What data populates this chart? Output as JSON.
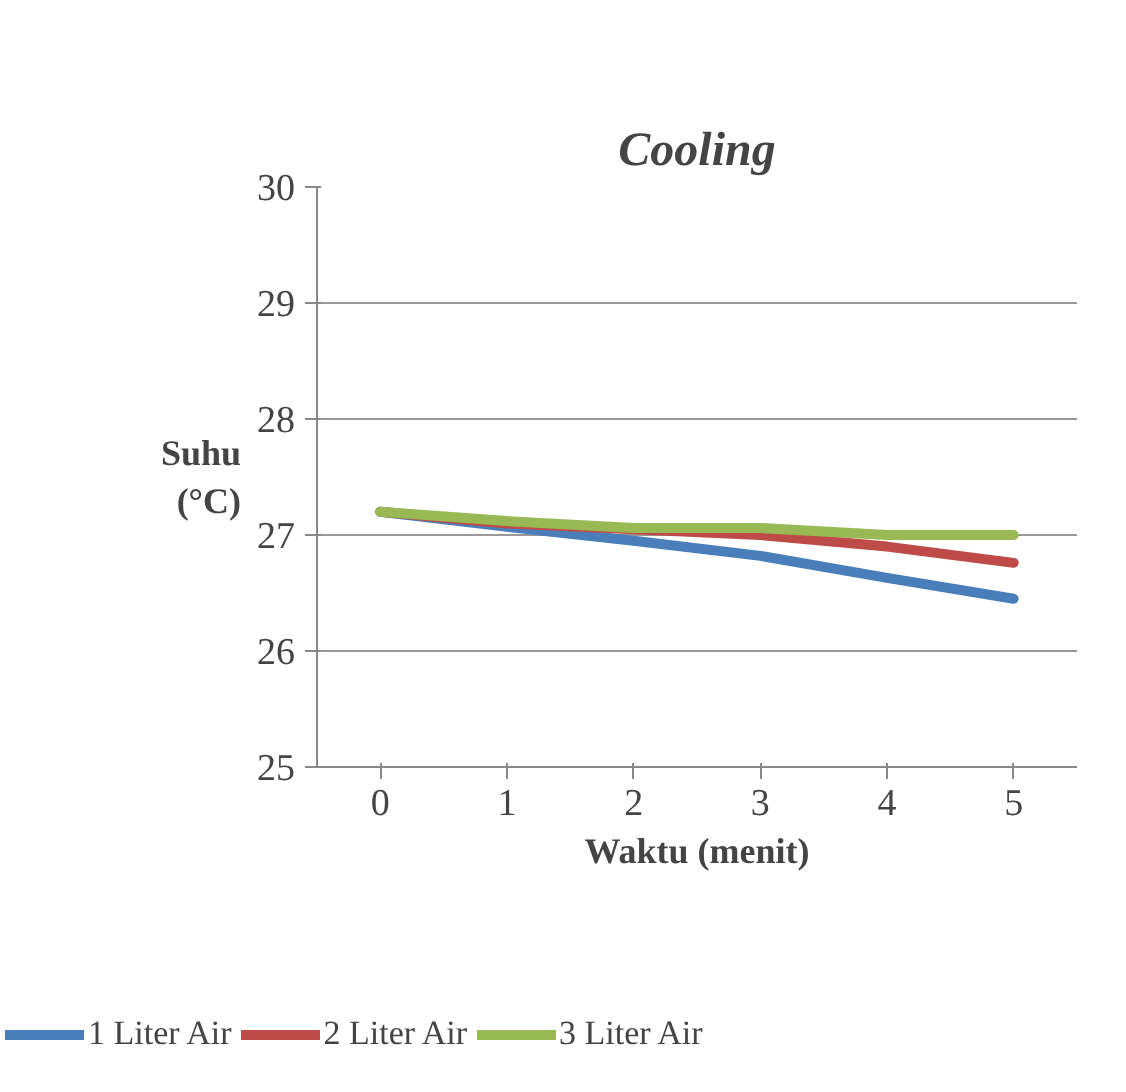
{
  "chart_data": {
    "type": "line",
    "title": "Cooling",
    "xlabel": "Waktu (menit)",
    "ylabel": "Suhu\n(°C)",
    "categories": [
      "0",
      "1",
      "2",
      "3",
      "4",
      "5"
    ],
    "series": [
      {
        "name": "1 Liter Air",
        "color": "#4a7ebb",
        "values": [
          27.2,
          27.07,
          26.95,
          26.82,
          26.63,
          26.45
        ]
      },
      {
        "name": "2 Liter Air",
        "color": "#be4b48",
        "values": [
          27.2,
          27.1,
          27.05,
          27.0,
          26.9,
          26.76
        ]
      },
      {
        "name": "3 Liter Air",
        "color": "#98b954",
        "values": [
          27.2,
          27.12,
          27.06,
          27.06,
          27.0,
          27.0
        ]
      }
    ],
    "ylim": [
      25,
      30
    ],
    "yticks": [
      25,
      26,
      27,
      28,
      29,
      30
    ],
    "grid": "y",
    "legend": "bottom"
  }
}
